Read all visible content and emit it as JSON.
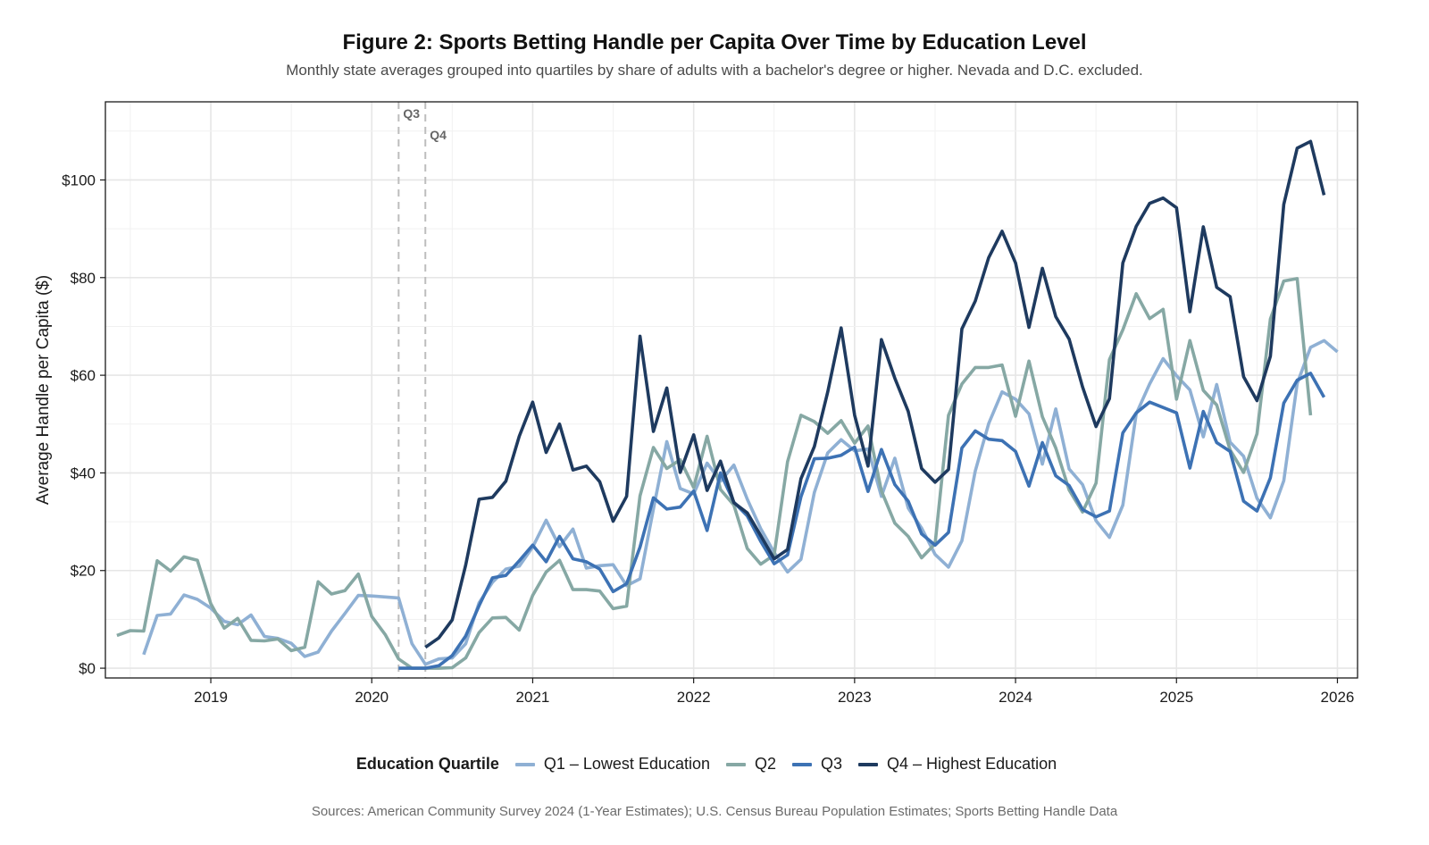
{
  "chart_data": {
    "type": "line",
    "title": "Figure 2: Sports Betting Handle per Capita Over Time by Education Level",
    "subtitle": "Monthly state averages grouped into quartiles by share of adults with a bachelor's degree or higher. Nevada and D.C. excluded.",
    "xlabel": "",
    "ylabel": "Average Handle per Capita ($)",
    "caption": "Sources: American Community Survey 2024 (1-Year Estimates); U.S. Census Bureau Population Estimates; Sports Betting Handle Data",
    "xlim": [
      2018.345,
      2026.125
    ],
    "ylim": [
      -2,
      116
    ],
    "x_ticks": [
      {
        "value": 2019,
        "label": "2019"
      },
      {
        "value": 2020,
        "label": "2020"
      },
      {
        "value": 2021,
        "label": "2021"
      },
      {
        "value": 2022,
        "label": "2022"
      },
      {
        "value": 2023,
        "label": "2023"
      },
      {
        "value": 2024,
        "label": "2024"
      },
      {
        "value": 2025,
        "label": "2025"
      },
      {
        "value": 2026,
        "label": "2026"
      }
    ],
    "y_ticks": [
      {
        "value": 0,
        "label": "$0"
      },
      {
        "value": 20,
        "label": "$20"
      },
      {
        "value": 40,
        "label": "$40"
      },
      {
        "value": 60,
        "label": "$60"
      },
      {
        "value": 80,
        "label": "$80"
      },
      {
        "value": 100,
        "label": "$100"
      }
    ],
    "grid": true,
    "legend_title": "Education Quartile",
    "legend_position": "bottom",
    "reference_lines": [
      {
        "x": 2020.167,
        "label": "Q3"
      },
      {
        "x": 2020.333,
        "label": "Q4"
      }
    ],
    "series": [
      {
        "name": "Q1 – Lowest Education",
        "color": "#8fb0d4",
        "start_year": 2018,
        "start_month": 8,
        "values": [
          2.8,
          10.8,
          11.1,
          15.0,
          14.1,
          12.3,
          9.6,
          8.9,
          10.9,
          6.5,
          6.1,
          5.1,
          2.4,
          3.3,
          7.6,
          11.2,
          14.9,
          14.8,
          14.6,
          14.4,
          5.0,
          0.8,
          1.9,
          2.1,
          5.0,
          13.4,
          17.6,
          20.3,
          20.9,
          24.8,
          30.3,
          24.9,
          28.5,
          20.5,
          21.0,
          21.2,
          16.9,
          18.3,
          32.6,
          46.4,
          36.8,
          35.7,
          42.0,
          38.3,
          41.6,
          34.6,
          28.6,
          23.7,
          19.7,
          22.3,
          36.0,
          44.1,
          46.8,
          44.5,
          44.9,
          35.2,
          43.0,
          32.8,
          28.7,
          23.3,
          20.7,
          26.1,
          40.4,
          50.1,
          56.6,
          55.1,
          52.1,
          41.8,
          53.1,
          40.8,
          37.6,
          30.2,
          26.8,
          33.4,
          52.1,
          58.2,
          63.4,
          59.9,
          57.0,
          47.4,
          58.1,
          46.3,
          43.4,
          34.8,
          30.8,
          38.4,
          58.3,
          65.7,
          67.1,
          64.8
        ]
      },
      {
        "name": "Q2",
        "color": "#86a8a4",
        "start_year": 2018,
        "start_month": 6,
        "values": [
          6.7,
          7.7,
          7.6,
          22.0,
          19.9,
          22.8,
          22.1,
          13.2,
          8.2,
          10.2,
          5.7,
          5.6,
          6.0,
          3.6,
          4.3,
          17.7,
          15.2,
          15.9,
          19.3,
          10.6,
          6.9,
          1.9,
          0.0,
          0.0,
          0.0,
          0.1,
          2.1,
          7.3,
          10.3,
          10.4,
          7.8,
          14.9,
          19.7,
          22.1,
          16.1,
          16.1,
          15.8,
          12.2,
          12.7,
          35.3,
          45.2,
          40.9,
          42.7,
          37.0,
          47.5,
          36.6,
          33.4,
          24.5,
          21.3,
          23.2,
          42.3,
          51.8,
          50.5,
          48.1,
          50.7,
          46.1,
          49.6,
          36.3,
          29.7,
          27.0,
          22.6,
          25.5,
          51.8,
          58.2,
          61.6,
          61.6,
          62.1,
          51.6,
          62.9,
          51.5,
          45.1,
          36.5,
          32.0,
          37.9,
          63.2,
          69.3,
          76.7,
          71.6,
          73.5,
          55.1,
          67.1,
          56.9,
          53.9,
          44.7,
          40.1,
          48.0,
          71.5,
          79.3,
          79.8,
          51.8
        ]
      },
      {
        "name": "Q3",
        "color": "#3d72b4",
        "start_year": 2020,
        "start_month": 3,
        "values": [
          0.0,
          0.0,
          0.0,
          0.5,
          2.6,
          6.6,
          12.8,
          18.5,
          19.0,
          22.0,
          25.2,
          21.8,
          27.0,
          22.4,
          21.8,
          20.3,
          15.7,
          17.3,
          24.8,
          34.9,
          32.6,
          33.0,
          36.3,
          28.2,
          40.0,
          34.0,
          31.2,
          26.0,
          21.4,
          23.2,
          35.1,
          42.9,
          43.0,
          43.6,
          45.3,
          36.2,
          44.8,
          37.6,
          34.2,
          27.5,
          25.2,
          27.8,
          45.1,
          48.6,
          46.9,
          46.6,
          44.4,
          37.3,
          46.2,
          39.4,
          37.4,
          32.5,
          31.0,
          32.2,
          48.2,
          52.3,
          54.5,
          53.4,
          52.3,
          41.0,
          52.6,
          46.2,
          44.4,
          34.2,
          32.2,
          39.0,
          54.3,
          59.0,
          60.4,
          55.5
        ]
      },
      {
        "name": "Q4 – Highest Education",
        "color": "#1e3a5f",
        "start_year": 2020,
        "start_month": 5,
        "values": [
          4.3,
          6.2,
          9.9,
          21.1,
          34.6,
          35.0,
          38.3,
          47.5,
          54.5,
          44.2,
          50.0,
          40.6,
          41.4,
          38.2,
          30.1,
          35.2,
          68.0,
          48.5,
          57.4,
          40.1,
          47.8,
          36.4,
          42.4,
          33.9,
          31.8,
          27.2,
          22.4,
          24.3,
          38.8,
          45.4,
          56.6,
          69.7,
          51.8,
          41.4,
          67.3,
          59.4,
          52.6,
          40.9,
          38.1,
          40.7,
          69.5,
          75.2,
          84.1,
          89.5,
          83.0,
          69.8,
          81.9,
          72.0,
          67.4,
          57.6,
          49.5,
          55.2,
          83.0,
          90.5,
          95.2,
          96.3,
          94.3,
          73.0,
          90.4,
          78.0,
          76.1,
          59.7,
          54.8,
          63.9,
          95.0,
          106.5,
          107.9,
          96.9
        ]
      }
    ]
  }
}
